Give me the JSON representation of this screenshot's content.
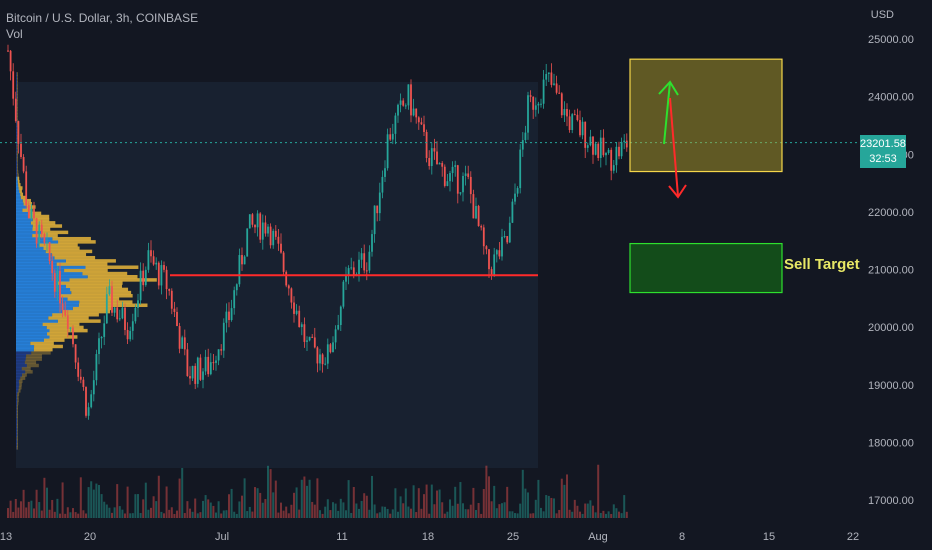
{
  "header": {
    "symbol_line": "Bitcoin / U.S. Dollar, 3h, COINBASE",
    "volume_label": "Vol"
  },
  "axis": {
    "currency": "USD",
    "price_ticks": [
      "25000.00",
      "24000.00",
      "23000.00",
      "22000.00",
      "21000.00",
      "20000.00",
      "19000.00",
      "18000.00",
      "17000.00"
    ],
    "date_ticks": [
      "13",
      "20",
      "Jul",
      "11",
      "18",
      "25",
      "Aug",
      "8",
      "15",
      "22"
    ]
  },
  "last_price": {
    "value": "23201.58",
    "countdown": "32:53"
  },
  "annotations": {
    "sell_target_label": "Sell Target"
  },
  "colors": {
    "background": "#131722",
    "up": "#26a69a",
    "down": "#ef5350",
    "vp_up": "#2962ff",
    "vp_down": "#e8b53a",
    "level_line": "#ff2a2a",
    "yellow_box": "#f5d64a",
    "green_box": "#2ee02e"
  },
  "chart_data": {
    "type": "candlestick",
    "title": "Bitcoin / U.S. Dollar, 3h, COINBASE",
    "x_axis": [
      "13",
      "20",
      "Jul",
      "11",
      "18",
      "25",
      "Aug",
      "8",
      "15",
      "22"
    ],
    "y_range": [
      16800,
      25500
    ],
    "last_price": 23201.58,
    "horizontal_level": 20900,
    "price_path": [
      {
        "date": "Jun 13",
        "price": 24800
      },
      {
        "date": "Jun 14",
        "price": 22000
      },
      {
        "date": "Jun 15",
        "price": 21200
      },
      {
        "date": "Jun 16",
        "price": 20200
      },
      {
        "date": "Jun 18",
        "price": 18500
      },
      {
        "date": "Jun 19",
        "price": 20500
      },
      {
        "date": "Jun 22",
        "price": 20000
      },
      {
        "date": "Jun 25",
        "price": 21200
      },
      {
        "date": "Jun 28",
        "price": 20700
      },
      {
        "date": "Jul 1",
        "price": 19200
      },
      {
        "date": "Jul 3",
        "price": 19300
      },
      {
        "date": "Jul 5",
        "price": 20100
      },
      {
        "date": "Jul 7",
        "price": 21700
      },
      {
        "date": "Jul 8",
        "price": 21800
      },
      {
        "date": "Jul 10",
        "price": 20800
      },
      {
        "date": "Jul 12",
        "price": 19600
      },
      {
        "date": "Jul 13",
        "price": 19500
      },
      {
        "date": "Jul 15",
        "price": 20900
      },
      {
        "date": "Jul 17",
        "price": 21200
      },
      {
        "date": "Jul 19",
        "price": 23300
      },
      {
        "date": "Jul 20",
        "price": 24000
      },
      {
        "date": "Jul 21",
        "price": 23000
      },
      {
        "date": "Jul 23",
        "price": 22600
      },
      {
        "date": "Jul 24",
        "price": 22500
      },
      {
        "date": "Jul 26",
        "price": 21000
      },
      {
        "date": "Jul 27",
        "price": 21500
      },
      {
        "date": "Jul 28",
        "price": 23800
      },
      {
        "date": "Jul 30",
        "price": 24300
      },
      {
        "date": "Jul 31",
        "price": 23600
      },
      {
        "date": "Aug 1",
        "price": 23300
      },
      {
        "date": "Aug 2",
        "price": 22900
      },
      {
        "date": "Aug 3",
        "price": 23200
      }
    ],
    "boxes": [
      {
        "name": "yellow range",
        "price_top": 24650,
        "price_bottom": 22700
      },
      {
        "name": "Sell Target",
        "price_top": 21450,
        "price_bottom": 20600
      }
    ]
  }
}
